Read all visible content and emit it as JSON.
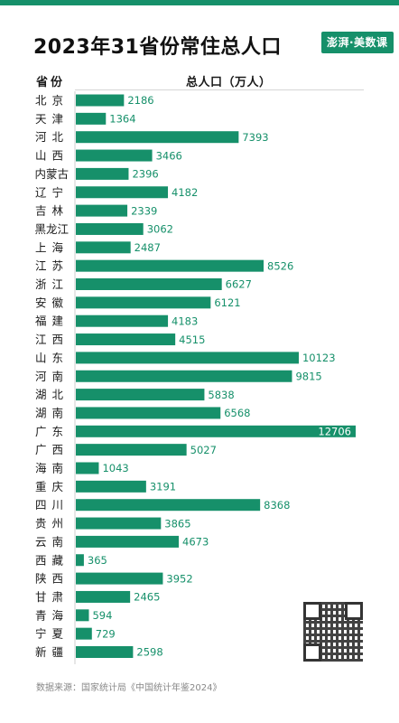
{
  "header": {
    "title": "2023年31省份常住总人口",
    "logo": "澎湃·美数课",
    "region_col": "省份",
    "population_col": "总人口（万人）"
  },
  "footer": {
    "source": "数据来源：国家统计局《中国统计年鉴2024》"
  },
  "colors": {
    "bar": "#16906a",
    "value_text": "#16906a",
    "value_inside": "#ffffff"
  },
  "chart_data": {
    "type": "bar",
    "orientation": "horizontal",
    "categories": [
      "北京",
      "天津",
      "河北",
      "山西",
      "内蒙古",
      "辽宁",
      "吉林",
      "黑龙江",
      "上海",
      "江苏",
      "浙江",
      "安徽",
      "福建",
      "江西",
      "山东",
      "河南",
      "湖北",
      "湖南",
      "广东",
      "广西",
      "海南",
      "重庆",
      "四川",
      "贵州",
      "云南",
      "西藏",
      "陕西",
      "甘肃",
      "青海",
      "宁夏",
      "新疆"
    ],
    "values": [
      2186,
      1364,
      7393,
      3466,
      2396,
      4182,
      2339,
      3062,
      2487,
      8526,
      6627,
      6121,
      4183,
      4515,
      10123,
      9815,
      5838,
      6568,
      12706,
      5027,
      1043,
      3191,
      8368,
      3865,
      4673,
      365,
      3952,
      2465,
      594,
      729,
      2598
    ],
    "xlim": [
      0,
      12706
    ]
  }
}
